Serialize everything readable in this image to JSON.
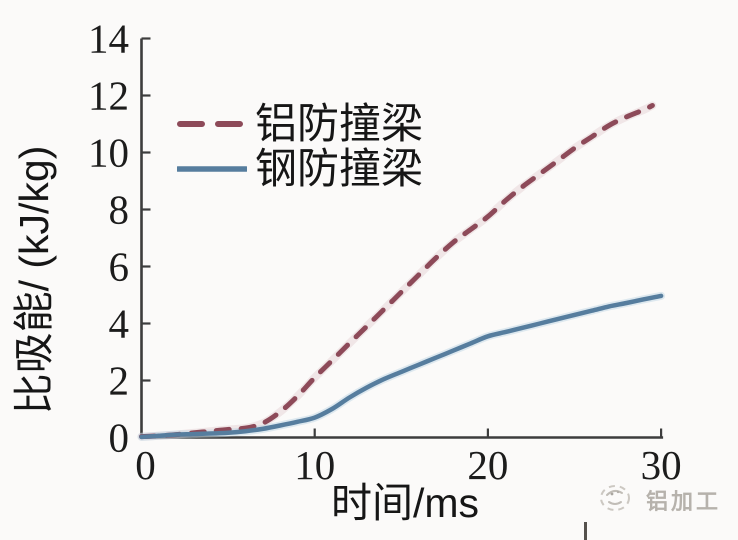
{
  "chart_data": {
    "type": "line",
    "title": "",
    "xlabel": "时间/ms",
    "ylabel": "比吸能/ (kJ/kg)",
    "xlim": [
      0,
      30
    ],
    "ylim": [
      0,
      14
    ],
    "x_ticks": [
      0,
      10,
      20,
      30
    ],
    "y_ticks": [
      0,
      2,
      4,
      6,
      8,
      10,
      12,
      14
    ],
    "grid": false,
    "legend_position": "upper-left-inside",
    "series": [
      {
        "name": "铝防撞梁",
        "line_style": "dashed",
        "color": "#8d4a59",
        "x": [
          0,
          1,
          2,
          3,
          4,
          5,
          6,
          7,
          8,
          9,
          10,
          11,
          12,
          13,
          14,
          15,
          16,
          17,
          18,
          19,
          20,
          21,
          22,
          23,
          24,
          25,
          26,
          27,
          28,
          29,
          29.5
        ],
        "values": [
          0.03,
          0.06,
          0.1,
          0.16,
          0.22,
          0.28,
          0.33,
          0.5,
          0.9,
          1.45,
          2.1,
          2.7,
          3.3,
          3.9,
          4.5,
          5.1,
          5.7,
          6.3,
          6.85,
          7.3,
          7.75,
          8.3,
          8.8,
          9.25,
          9.7,
          10.15,
          10.55,
          10.95,
          11.25,
          11.5,
          11.65
        ]
      },
      {
        "name": "钢防撞梁",
        "line_style": "solid",
        "color": "#567d9e",
        "x": [
          0,
          1,
          2,
          3,
          4,
          5,
          6,
          7,
          8,
          9,
          10,
          11,
          12,
          13,
          14,
          15,
          16,
          17,
          18,
          19,
          20,
          21,
          22,
          23,
          24,
          25,
          26,
          27,
          28,
          29,
          30
        ],
        "values": [
          0.02,
          0.06,
          0.1,
          0.12,
          0.14,
          0.17,
          0.22,
          0.3,
          0.42,
          0.55,
          0.7,
          1.0,
          1.4,
          1.75,
          2.05,
          2.3,
          2.55,
          2.8,
          3.05,
          3.3,
          3.55,
          3.7,
          3.85,
          4.0,
          4.15,
          4.3,
          4.45,
          4.6,
          4.72,
          4.85,
          4.97
        ]
      }
    ]
  },
  "watermark": {
    "text": "铝加工"
  },
  "colors": {
    "axis": "#3d3d3d",
    "text": "#1c1c1c",
    "aluminum_line": "#8d4a59",
    "steel_line": "#567d9e",
    "watermark_text": "#b6b2ac",
    "background": "#fbfaf9"
  }
}
